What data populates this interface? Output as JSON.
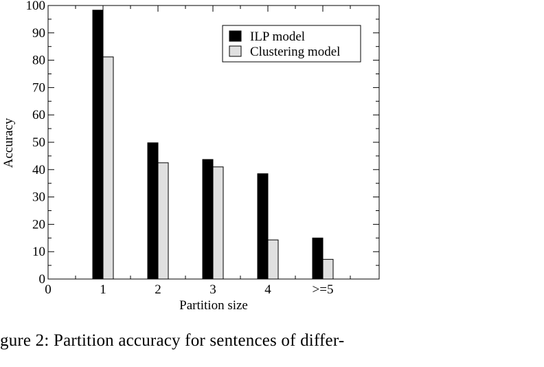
{
  "chart_data": {
    "type": "bar",
    "x_ticks": [
      "0",
      "1",
      "2",
      "3",
      "4",
      ">=5"
    ],
    "categories": [
      "1",
      "2",
      "3",
      "4",
      ">=5"
    ],
    "series": [
      {
        "name": "ILP model",
        "color": "#000000",
        "values": [
          98.3,
          49.8,
          43.7,
          38.5,
          15.0
        ]
      },
      {
        "name": "Clustering model",
        "color": "#e0e0e0",
        "values": [
          81.2,
          42.5,
          41.0,
          14.3,
          7.2
        ]
      }
    ],
    "xlabel": "Partition size",
    "ylabel": "Accuracy",
    "ylim": [
      0,
      100
    ],
    "y_ticks": [
      "0",
      "10",
      "20",
      "30",
      "40",
      "50",
      "60",
      "70",
      "80",
      "90",
      "100"
    ],
    "legend_position": "top-right",
    "grid": false
  },
  "caption": "gure 2:  Partition accuracy for sentences of differ-"
}
